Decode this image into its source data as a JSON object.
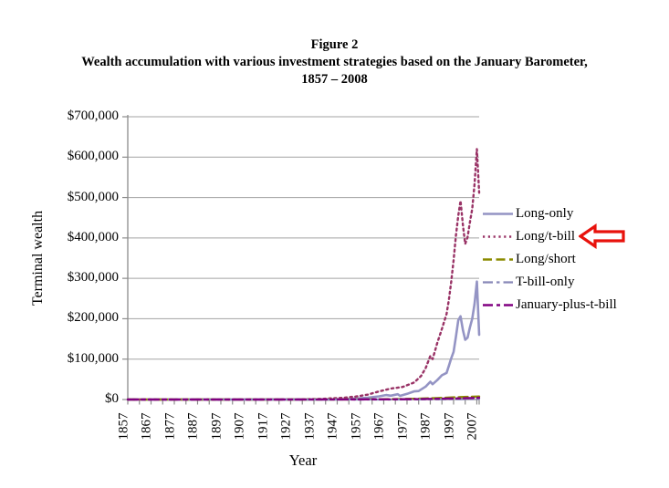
{
  "figure": {
    "label": "Figure 2",
    "title": "Wealth accumulation with various investment strategies based on the January Barometer,",
    "date_range": "1857 – 2008"
  },
  "chart_data": {
    "type": "line",
    "title": "Wealth accumulation with various investment strategies based on the January Barometer, 1857 – 2008",
    "xlabel": "Year",
    "ylabel": "Terminal wealth",
    "x_range": [
      1857,
      2008
    ],
    "ylim": [
      0,
      700000
    ],
    "grid": "horizontal-only",
    "legend_position": "right-outside",
    "axis_color": "#8c8c8c",
    "gridline_color": "#a3a3a3",
    "y_ticks": [
      {
        "value": 0,
        "label": "$0"
      },
      {
        "value": 100000,
        "label": "$100,000"
      },
      {
        "value": 200000,
        "label": "$200,000"
      },
      {
        "value": 300000,
        "label": "$300,000"
      },
      {
        "value": 400000,
        "label": "$400,000"
      },
      {
        "value": 500000,
        "label": "$500,000"
      },
      {
        "value": 600000,
        "label": "$600,000"
      },
      {
        "value": 700000,
        "label": "$700,000"
      }
    ],
    "x_tick_labels": [
      "1857",
      "1867",
      "1877",
      "1887",
      "1897",
      "1907",
      "1917",
      "1927",
      "1937",
      "1947",
      "1957",
      "1967",
      "1977",
      "1987",
      "1997",
      "2007"
    ],
    "x_label_years": [
      1857,
      1867,
      1877,
      1887,
      1897,
      1907,
      1917,
      1927,
      1937,
      1947,
      1957,
      1967,
      1977,
      1987,
      1997,
      2007
    ],
    "x_minor_tick_step": 5,
    "annotation": {
      "shape": "block-arrow-left",
      "points_to": "Long/t-bill",
      "outline_color": "#e8120c",
      "fill_color": "#ffffff"
    },
    "series": [
      {
        "name": "Long-only",
        "color": "#9494c4",
        "dash": "",
        "width": 2.6,
        "points": [
          [
            1857,
            1
          ],
          [
            1870,
            4
          ],
          [
            1880,
            8
          ],
          [
            1890,
            18
          ],
          [
            1900,
            30
          ],
          [
            1910,
            55
          ],
          [
            1915,
            60
          ],
          [
            1920,
            75
          ],
          [
            1929,
            300
          ],
          [
            1932,
            90
          ],
          [
            1937,
            220
          ],
          [
            1942,
            160
          ],
          [
            1946,
            380
          ],
          [
            1950,
            900
          ],
          [
            1955,
            2500
          ],
          [
            1960,
            4500
          ],
          [
            1965,
            8000
          ],
          [
            1968,
            11000
          ],
          [
            1970,
            9500
          ],
          [
            1973,
            13000
          ],
          [
            1974,
            9000
          ],
          [
            1977,
            14000
          ],
          [
            1980,
            20000
          ],
          [
            1982,
            21000
          ],
          [
            1985,
            32000
          ],
          [
            1987,
            44000
          ],
          [
            1988,
            38000
          ],
          [
            1990,
            48000
          ],
          [
            1992,
            60000
          ],
          [
            1994,
            66000
          ],
          [
            1995,
            84000
          ],
          [
            1996,
            102000
          ],
          [
            1997,
            118000
          ],
          [
            1998,
            155000
          ],
          [
            1999,
            196000
          ],
          [
            2000,
            206000
          ],
          [
            2001,
            172000
          ],
          [
            2002,
            148000
          ],
          [
            2003,
            153000
          ],
          [
            2004,
            178000
          ],
          [
            2005,
            200000
          ],
          [
            2006,
            236000
          ],
          [
            2007,
            292000
          ],
          [
            2008,
            160000
          ]
        ]
      },
      {
        "name": "Long/t-bill",
        "color": "#993366",
        "dash": "2.2 3.6",
        "width": 2.4,
        "points": [
          [
            1857,
            1
          ],
          [
            1880,
            15
          ],
          [
            1900,
            60
          ],
          [
            1915,
            150
          ],
          [
            1930,
            500
          ],
          [
            1940,
            1500
          ],
          [
            1950,
            4500
          ],
          [
            1955,
            7500
          ],
          [
            1960,
            12000
          ],
          [
            1965,
            20000
          ],
          [
            1970,
            27000
          ],
          [
            1975,
            31000
          ],
          [
            1980,
            42000
          ],
          [
            1983,
            58000
          ],
          [
            1985,
            78000
          ],
          [
            1987,
            108000
          ],
          [
            1988,
            100000
          ],
          [
            1990,
            140000
          ],
          [
            1992,
            175000
          ],
          [
            1994,
            212000
          ],
          [
            1995,
            248000
          ],
          [
            1996,
            292000
          ],
          [
            1997,
            345000
          ],
          [
            1998,
            405000
          ],
          [
            1999,
            455000
          ],
          [
            2000,
            492000
          ],
          [
            2001,
            432000
          ],
          [
            2002,
            385000
          ],
          [
            2003,
            402000
          ],
          [
            2004,
            438000
          ],
          [
            2005,
            472000
          ],
          [
            2006,
            532000
          ],
          [
            2007,
            620000
          ],
          [
            2008,
            512000
          ]
        ]
      },
      {
        "name": "Long/short",
        "color": "#8b8b00",
        "dash": "10 4.5",
        "width": 2.4,
        "points": [
          [
            1857,
            1
          ],
          [
            1900,
            20
          ],
          [
            1930,
            80
          ],
          [
            1950,
            250
          ],
          [
            1970,
            900
          ],
          [
            1980,
            1800
          ],
          [
            1990,
            3500
          ],
          [
            2000,
            6000
          ],
          [
            2008,
            7500
          ]
        ]
      },
      {
        "name": "T-bill-only",
        "color": "#8888b8",
        "dash": "11 4 3.5 4",
        "width": 2.2,
        "points": [
          [
            1857,
            1
          ],
          [
            1900,
            3
          ],
          [
            1930,
            8
          ],
          [
            1950,
            15
          ],
          [
            1970,
            60
          ],
          [
            1980,
            150
          ],
          [
            1990,
            400
          ],
          [
            2000,
            800
          ],
          [
            2008,
            1400
          ]
        ]
      },
      {
        "name": "January-plus-t-bill",
        "color": "#800080",
        "dash": "11 4 4 4",
        "width": 2.4,
        "points": [
          [
            1857,
            1
          ],
          [
            1900,
            10
          ],
          [
            1930,
            40
          ],
          [
            1950,
            120
          ],
          [
            1970,
            400
          ],
          [
            1980,
            900
          ],
          [
            1990,
            1800
          ],
          [
            2000,
            3000
          ],
          [
            2008,
            4200
          ]
        ]
      }
    ]
  }
}
